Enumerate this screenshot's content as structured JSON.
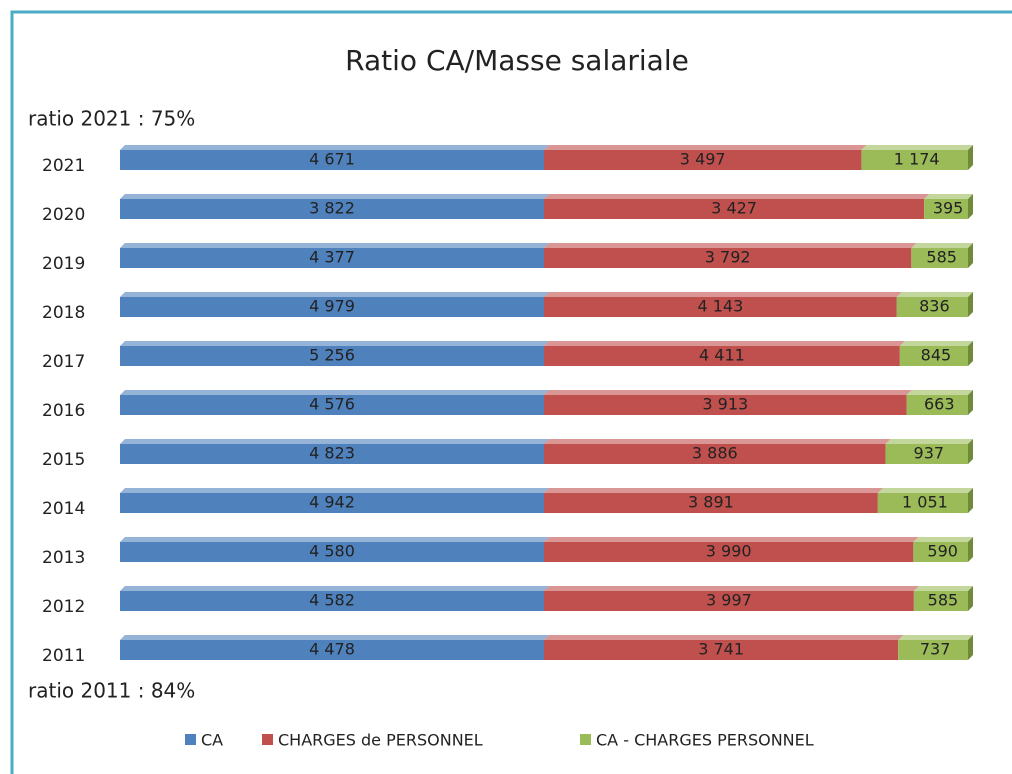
{
  "chart_data": {
    "type": "bar",
    "orientation": "horizontal",
    "stacked": "percent",
    "title": "Ratio CA/Masse salariale",
    "annotations": [
      "ratio 2021 : 75%",
      "ratio 2011 : 84%"
    ],
    "categories": [
      "2021",
      "2020",
      "2019",
      "2018",
      "2017",
      "2016",
      "2015",
      "2014",
      "2013",
      "2012",
      "2011"
    ],
    "series": [
      {
        "name": "CA",
        "color": "#4f81bd",
        "values": [
          4671,
          3822,
          4377,
          4979,
          5256,
          4576,
          4823,
          4942,
          4580,
          4582,
          4478
        ],
        "value_labels": [
          "4 671",
          "3 822",
          "4 377",
          "4 979",
          "5 256",
          "4 576",
          "4 823",
          "4 942",
          "4 580",
          "4 582",
          "4 478"
        ]
      },
      {
        "name": "CHARGES de PERSONNEL",
        "color": "#c0504d",
        "values": [
          3497,
          3427,
          3792,
          4143,
          4411,
          3913,
          3886,
          3891,
          3990,
          3997,
          3741
        ],
        "value_labels": [
          "3 497",
          "3 427",
          "3 792",
          "4 143",
          "4 411",
          "3 913",
          "3 886",
          "3 891",
          "3 990",
          "3 997",
          "3 741"
        ]
      },
      {
        "name": "CA - CHARGES PERSONNEL",
        "color": "#9bbb59",
        "values": [
          1174,
          395,
          585,
          836,
          845,
          663,
          937,
          1051,
          590,
          585,
          737
        ],
        "value_labels": [
          "1 174",
          "395",
          "585",
          "836",
          "845",
          "663",
          "937",
          "1 051",
          "590",
          "585",
          "737"
        ]
      }
    ]
  }
}
